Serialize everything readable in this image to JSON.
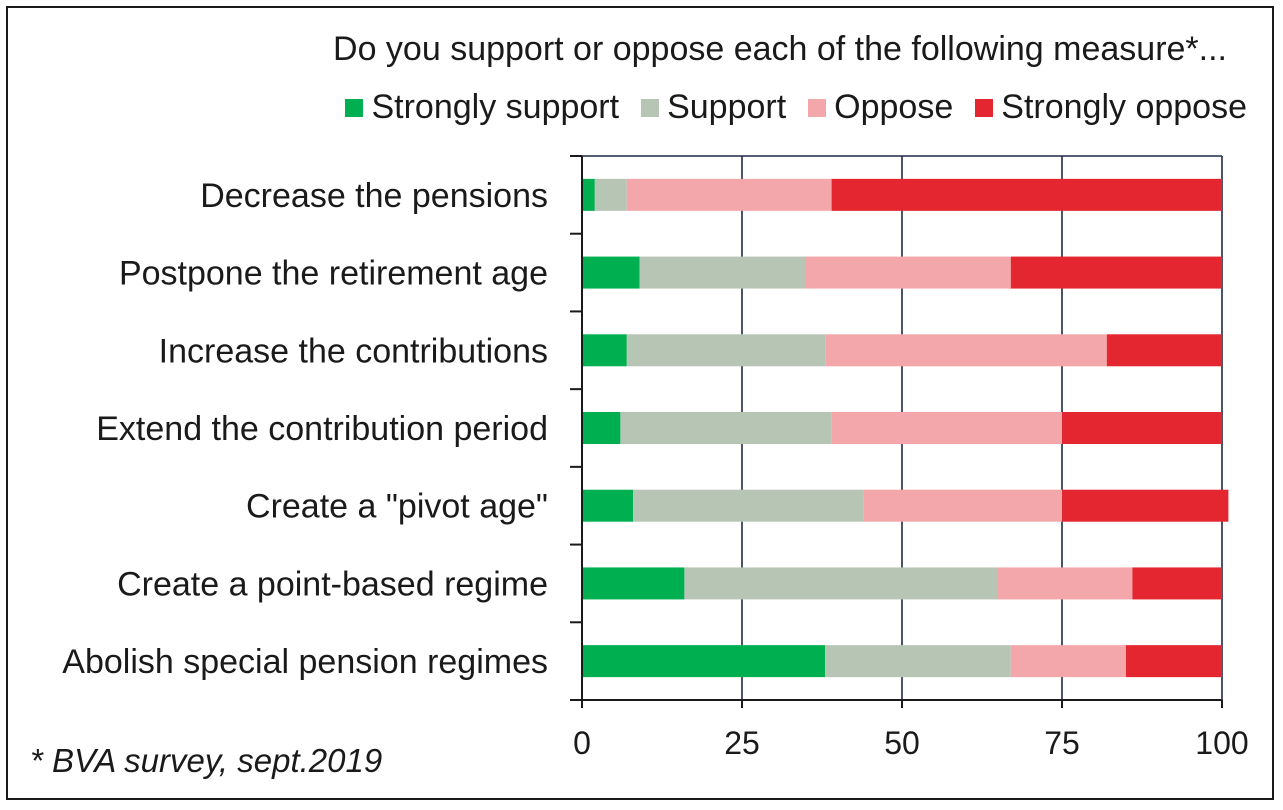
{
  "chart_data": {
    "type": "bar",
    "orientation": "horizontal",
    "stacked": true,
    "title": "Do you support or oppose each of the following measure*...",
    "categories": [
      "Decrease the pensions",
      "Postpone the retirement age",
      "Increase the contributions",
      "Extend the contribution period",
      "Create a \"pivot age\"",
      "Create a point-based regime",
      "Abolish special pension regimes"
    ],
    "series": [
      {
        "name": "Strongly support",
        "color": "#00b050",
        "values": [
          2,
          9,
          7,
          6,
          8,
          16,
          38
        ]
      },
      {
        "name": "Support",
        "color": "#b7c5b4",
        "values": [
          5,
          26,
          31,
          33,
          36,
          49,
          29
        ]
      },
      {
        "name": "Oppose",
        "color": "#f4a7ab",
        "values": [
          32,
          32,
          44,
          36,
          31,
          21,
          18
        ]
      },
      {
        "name": "Strongly oppose",
        "color": "#e3262f",
        "values": [
          61,
          33,
          18,
          25,
          26,
          14,
          15
        ]
      }
    ],
    "xlim": [
      0,
      100
    ],
    "xticks": [
      "0",
      "25",
      "50",
      "75",
      "100"
    ],
    "xlabel": "",
    "ylabel": "",
    "grid": true,
    "legend_position": "top",
    "gridline_color": "#1f2a44"
  },
  "footnote": "* BVA survey, sept.2019"
}
